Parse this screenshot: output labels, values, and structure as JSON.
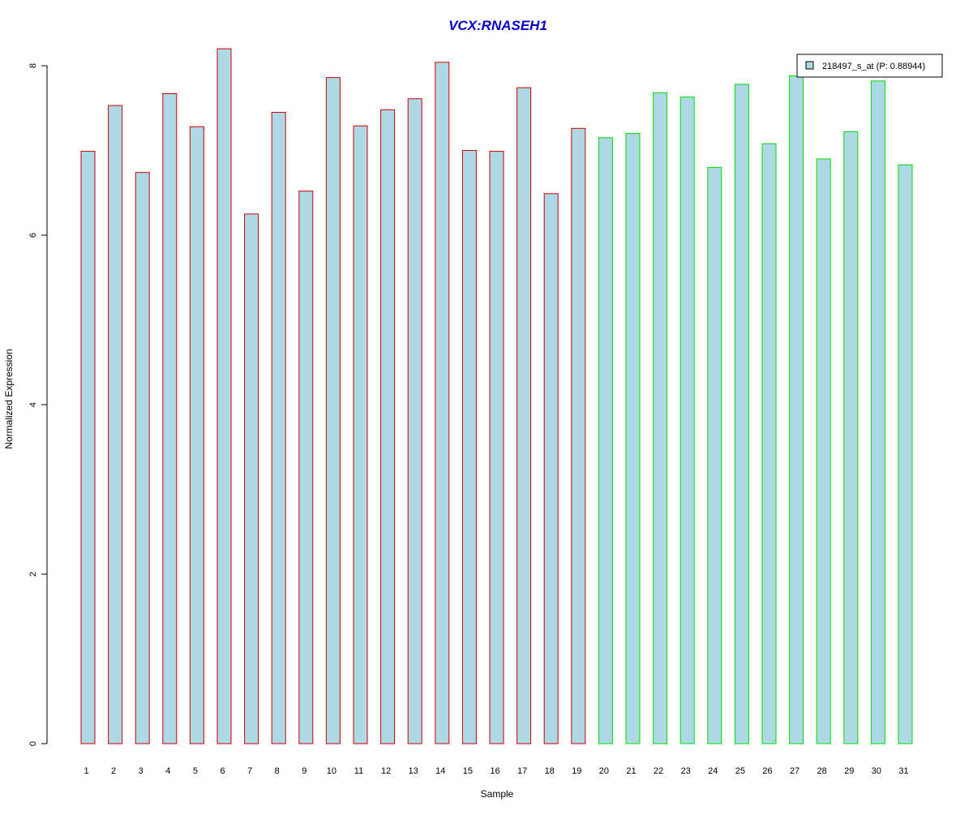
{
  "chart_data": {
    "type": "bar",
    "title": "VCX:RNASEH1",
    "xlabel": "Sample",
    "ylabel": "Normalized Expression",
    "categories": [
      "1",
      "2",
      "3",
      "4",
      "5",
      "6",
      "7",
      "8",
      "9",
      "10",
      "11",
      "12",
      "13",
      "14",
      "15",
      "16",
      "17",
      "18",
      "19",
      "20",
      "21",
      "22",
      "23",
      "24",
      "25",
      "26",
      "27",
      "28",
      "29",
      "30",
      "31"
    ],
    "series": [
      {
        "name": "218497_s_at (P: 0.88944)",
        "values": [
          6.99,
          7.53,
          6.74,
          7.67,
          7.28,
          8.2,
          6.25,
          7.45,
          6.52,
          7.86,
          7.29,
          7.48,
          7.61,
          8.04,
          7.0,
          6.99,
          7.74,
          6.49,
          7.26,
          7.15,
          7.2,
          7.68,
          7.63,
          6.8,
          7.78,
          7.08,
          7.88,
          6.9,
          7.22,
          7.82,
          6.83
        ]
      }
    ],
    "group_of_sample": [
      "a",
      "a",
      "a",
      "a",
      "a",
      "a",
      "a",
      "a",
      "a",
      "a",
      "a",
      "a",
      "a",
      "a",
      "a",
      "a",
      "a",
      "a",
      "a",
      "b",
      "b",
      "b",
      "b",
      "b",
      "b",
      "b",
      "b",
      "b",
      "b",
      "b",
      "b"
    ],
    "ylim": [
      0,
      8.2
    ],
    "yticks": [
      0,
      2,
      4,
      6,
      8
    ],
    "grid": false,
    "legend_position": "top-right",
    "colors": {
      "title": "#0000CC",
      "bar_fill": "#ADD8E6",
      "group_a_border": "#CC0000",
      "group_b_border": "#00DD00",
      "axis": "#000000"
    }
  }
}
